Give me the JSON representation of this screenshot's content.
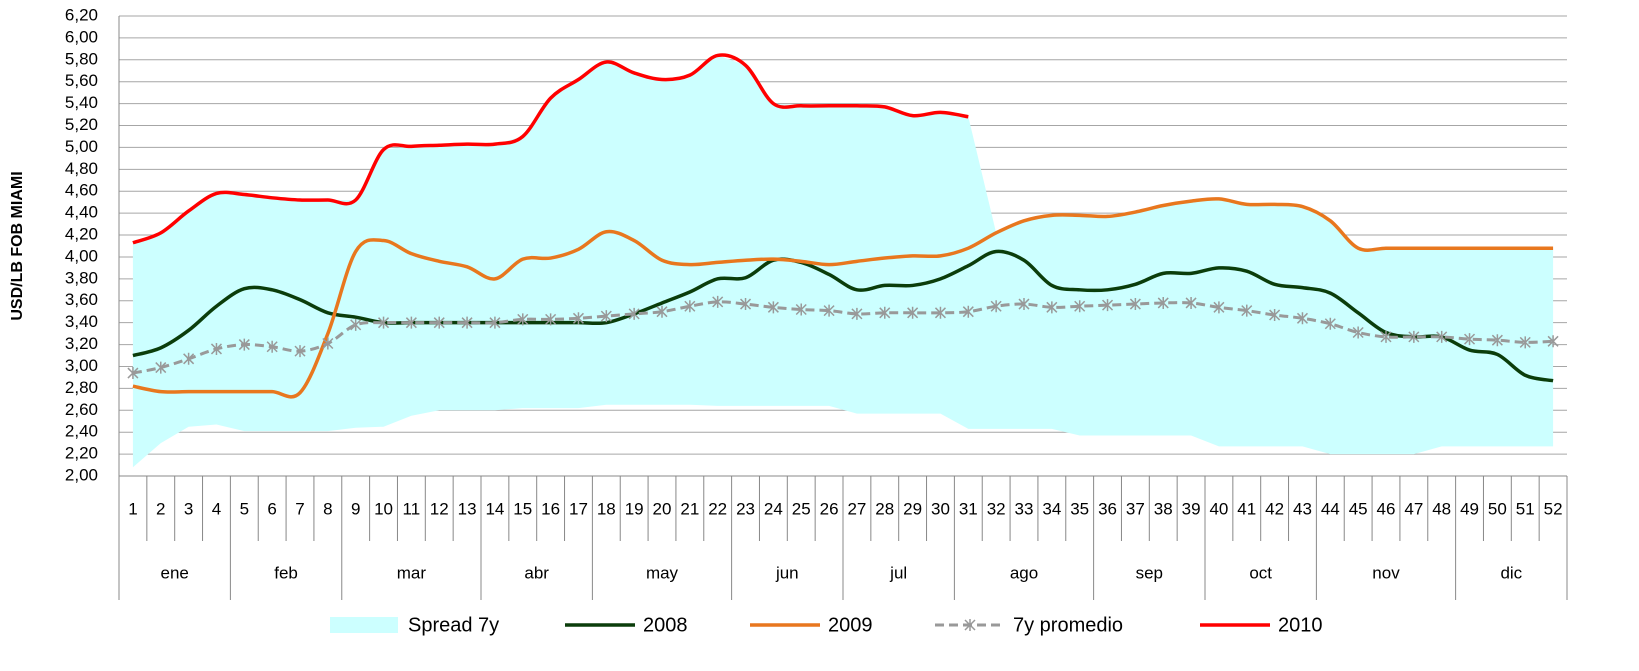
{
  "chart_data": {
    "type": "line",
    "y_label": "USD/LB FOB MIAMI",
    "x": [
      1,
      2,
      3,
      4,
      5,
      6,
      7,
      8,
      9,
      10,
      11,
      12,
      13,
      14,
      15,
      16,
      17,
      18,
      19,
      20,
      21,
      22,
      23,
      24,
      25,
      26,
      27,
      28,
      29,
      30,
      31,
      32,
      33,
      34,
      35,
      36,
      37,
      38,
      39,
      40,
      41,
      42,
      43,
      44,
      45,
      46,
      47,
      48,
      49,
      50,
      51,
      52
    ],
    "groups": [
      {
        "label": "ene",
        "count": 4
      },
      {
        "label": "feb",
        "count": 4
      },
      {
        "label": "mar",
        "count": 5
      },
      {
        "label": "abr",
        "count": 4
      },
      {
        "label": "may",
        "count": 5
      },
      {
        "label": "jun",
        "count": 4
      },
      {
        "label": "jul",
        "count": 4
      },
      {
        "label": "ago",
        "count": 5
      },
      {
        "label": "sep",
        "count": 4
      },
      {
        "label": "oct",
        "count": 4
      },
      {
        "label": "nov",
        "count": 5
      },
      {
        "label": "dic",
        "count": 4
      }
    ],
    "ylim": [
      2.0,
      6.2
    ],
    "yticks": [
      {
        "value": 2.0,
        "label": "2,00"
      },
      {
        "value": 2.2,
        "label": "2,20"
      },
      {
        "value": 2.4,
        "label": "2,40"
      },
      {
        "value": 2.6,
        "label": "2,60"
      },
      {
        "value": 2.8,
        "label": "2,80"
      },
      {
        "value": 3.0,
        "label": "3,00"
      },
      {
        "value": 3.2,
        "label": "3,20"
      },
      {
        "value": 3.4,
        "label": "3,40"
      },
      {
        "value": 3.6,
        "label": "3,60"
      },
      {
        "value": 3.8,
        "label": "3,80"
      },
      {
        "value": 4.0,
        "label": "4,00"
      },
      {
        "value": 4.2,
        "label": "4,20"
      },
      {
        "value": 4.4,
        "label": "4,40"
      },
      {
        "value": 4.6,
        "label": "4,60"
      },
      {
        "value": 4.8,
        "label": "4,80"
      },
      {
        "value": 5.0,
        "label": "5,00"
      },
      {
        "value": 5.2,
        "label": "5,20"
      },
      {
        "value": 5.4,
        "label": "5,40"
      },
      {
        "value": 5.6,
        "label": "5,60"
      },
      {
        "value": 5.8,
        "label": "5,80"
      },
      {
        "value": 6.0,
        "label": "6,00"
      },
      {
        "value": 6.2,
        "label": "6,20"
      }
    ],
    "grid": true,
    "series": [
      {
        "name": "Spread 7y",
        "kind": "band",
        "color": "#ccffff",
        "high": [
          4.13,
          4.22,
          4.42,
          4.58,
          4.57,
          4.54,
          4.52,
          4.52,
          4.52,
          4.98,
          5.01,
          5.02,
          5.03,
          5.03,
          5.1,
          5.45,
          5.62,
          5.78,
          5.68,
          5.62,
          5.66,
          5.84,
          5.75,
          5.4,
          5.38,
          5.38,
          5.38,
          5.37,
          5.29,
          5.32,
          5.28,
          4.22,
          4.33,
          4.38,
          4.38,
          4.37,
          4.41,
          4.47,
          4.51,
          4.53,
          4.48,
          4.48,
          4.46,
          4.33,
          4.08,
          4.08,
          4.08,
          4.08,
          4.08,
          4.08,
          4.08,
          4.08
        ],
        "low": [
          2.08,
          2.3,
          2.45,
          2.47,
          2.41,
          2.41,
          2.41,
          2.41,
          2.44,
          2.45,
          2.55,
          2.6,
          2.6,
          2.6,
          2.62,
          2.62,
          2.62,
          2.65,
          2.65,
          2.65,
          2.65,
          2.64,
          2.64,
          2.64,
          2.64,
          2.64,
          2.57,
          2.57,
          2.57,
          2.57,
          2.43,
          2.43,
          2.43,
          2.43,
          2.37,
          2.37,
          2.37,
          2.37,
          2.37,
          2.27,
          2.27,
          2.27,
          2.27,
          2.2,
          2.2,
          2.2,
          2.2,
          2.27,
          2.27,
          2.27,
          2.27,
          2.27
        ]
      },
      {
        "name": "2008",
        "color": "#0b3d0b",
        "values": [
          3.1,
          3.17,
          3.33,
          3.55,
          3.71,
          3.7,
          3.61,
          3.49,
          3.45,
          3.4,
          3.4,
          3.4,
          3.4,
          3.4,
          3.4,
          3.4,
          3.4,
          3.4,
          3.48,
          3.58,
          3.68,
          3.8,
          3.81,
          3.97,
          3.95,
          3.84,
          3.7,
          3.74,
          3.74,
          3.8,
          3.92,
          4.05,
          3.97,
          3.74,
          3.7,
          3.7,
          3.75,
          3.85,
          3.85,
          3.9,
          3.87,
          3.75,
          3.72,
          3.67,
          3.49,
          3.31,
          3.27,
          3.27,
          3.15,
          3.11,
          2.92,
          2.87
        ]
      },
      {
        "name": "2009",
        "color": "#e8771e",
        "values": [
          2.82,
          2.77,
          2.77,
          2.77,
          2.77,
          2.77,
          2.76,
          3.3,
          4.05,
          4.15,
          4.03,
          3.96,
          3.91,
          3.8,
          3.98,
          3.99,
          4.07,
          4.23,
          4.15,
          3.97,
          3.93,
          3.95,
          3.97,
          3.98,
          3.96,
          3.93,
          3.96,
          3.99,
          4.01,
          4.01,
          4.08,
          4.22,
          4.33,
          4.38,
          4.38,
          4.37,
          4.41,
          4.47,
          4.51,
          4.53,
          4.48,
          4.48,
          4.46,
          4.33,
          4.08,
          4.08,
          4.08,
          4.08,
          4.08,
          4.08,
          4.08,
          4.08
        ]
      },
      {
        "name": "7y promedio",
        "color": "#999999",
        "dashed": true,
        "marker": "star",
        "values": [
          2.94,
          2.99,
          3.07,
          3.16,
          3.2,
          3.18,
          3.14,
          3.21,
          3.38,
          3.4,
          3.4,
          3.4,
          3.4,
          3.4,
          3.43,
          3.43,
          3.44,
          3.46,
          3.48,
          3.5,
          3.55,
          3.59,
          3.57,
          3.54,
          3.52,
          3.51,
          3.48,
          3.49,
          3.49,
          3.49,
          3.5,
          3.55,
          3.57,
          3.54,
          3.55,
          3.56,
          3.57,
          3.58,
          3.58,
          3.54,
          3.51,
          3.47,
          3.44,
          3.39,
          3.31,
          3.27,
          3.27,
          3.27,
          3.25,
          3.24,
          3.22,
          3.23
        ]
      },
      {
        "name": "2010",
        "color": "#ff0000",
        "values": [
          4.13,
          4.22,
          4.42,
          4.58,
          4.57,
          4.54,
          4.52,
          4.52,
          4.52,
          4.98,
          5.01,
          5.02,
          5.03,
          5.03,
          5.1,
          5.45,
          5.62,
          5.78,
          5.68,
          5.62,
          5.66,
          5.84,
          5.75,
          5.4,
          5.38,
          5.38,
          5.38,
          5.37,
          5.29,
          5.32,
          5.28,
          null,
          null,
          null,
          null,
          null,
          null,
          null,
          null,
          null,
          null,
          null,
          null,
          null,
          null,
          null,
          null,
          null,
          null,
          null,
          null,
          null
        ]
      }
    ]
  }
}
